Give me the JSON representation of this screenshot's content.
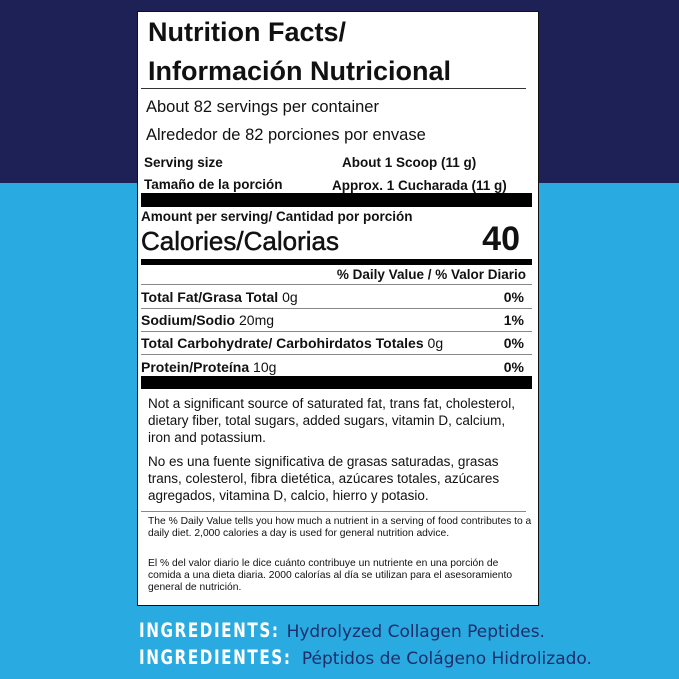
{
  "title": {
    "line1": "Nutrition Facts/",
    "line2": "Información Nutricional"
  },
  "servings": {
    "en": "About 82 servings per container",
    "es": "Alrededor de 82 porciones por envase"
  },
  "serving_size": {
    "label_en": "Serving size",
    "value_en": "About 1 Scoop (11 g)",
    "label_es": "Tamaño de la porción",
    "value_es": "Approx. 1 Cucharada (11 g)"
  },
  "amount_per_serving": "Amount per serving/ Cantidad por porción",
  "calories": {
    "label": "Calories/Calorias",
    "value": "40"
  },
  "dv_header": "% Daily Value / % Valor Diario",
  "nutrients": [
    {
      "name": "Total Fat/Grasa Total",
      "amount": "0g",
      "dv": "0%"
    },
    {
      "name": "Sodium/Sodio",
      "amount": "20mg",
      "dv": "1%"
    },
    {
      "name": "Total Carbohydrate/ Carbohirdatos Totales",
      "amount": "0g",
      "dv": "0%"
    },
    {
      "name": "Protein/Proteína",
      "amount": "10g",
      "dv": "0%"
    }
  ],
  "notes": {
    "en": "Not a significant source of saturated fat, trans fat, cholesterol, dietary fiber, total sugars, added sugars, vitamin D, calcium, iron and potassium.",
    "es": "No es una fuente significativa de grasas saturadas, grasas trans, colesterol, fibra dietética, azúcares totales, azúcares agregados, vitamina D, calcio, hierro y potasio."
  },
  "footnote": {
    "en": "The % Daily Value tells you how much a nutrient in a serving of food contributes to a daily diet. 2,000 calories a day is used for general nutrition advice.",
    "es": "El % del valor diario le dice cuánto contribuye un nutriente en una porción de comida a una dieta diaria. 2000 calorías al día se utilizan para el asesoramiento general de nutrición."
  },
  "ingredients": {
    "label_en": "INGREDIENTS:",
    "value_en": "Hydrolyzed Collagen Peptides.",
    "label_es": "INGREDIENTES:",
    "value_es": "Péptidos de Colágeno Hidrolizado."
  },
  "colors": {
    "navy": "#1d2155",
    "blue": "#29abe2"
  }
}
